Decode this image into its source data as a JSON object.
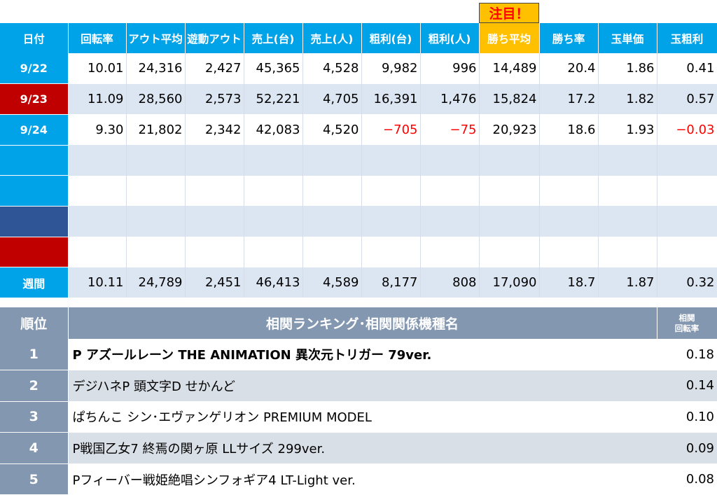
{
  "attention_label": "注目！",
  "stats": {
    "headers": [
      "日付",
      "回転率",
      "アウト平均",
      "遊動アウト",
      "売上(台)",
      "売上(人)",
      "粗利(台)",
      "粗利(人)",
      "勝ち平均",
      "勝ち率",
      "玉単価",
      "玉粗利"
    ],
    "rows": [
      {
        "date": "9/22",
        "values": [
          "10.01",
          "24,316",
          "2,427",
          "45,365",
          "4,528",
          "9,982",
          "996",
          "14,489",
          "20.4",
          "1.86",
          "0.41"
        ]
      },
      {
        "date": "9/23",
        "values": [
          "11.09",
          "28,560",
          "2,573",
          "52,221",
          "4,705",
          "16,391",
          "1,476",
          "15,824",
          "17.2",
          "1.82",
          "0.57"
        ]
      },
      {
        "date": "9/24",
        "values": [
          "9.30",
          "21,802",
          "2,342",
          "42,083",
          "4,520",
          "−705",
          "−75",
          "20,923",
          "18.6",
          "1.93",
          "−0.03"
        ]
      },
      {
        "date": "",
        "values": [
          "",
          "",
          "",
          "",
          "",
          "",
          "",
          "",
          "",
          "",
          ""
        ]
      },
      {
        "date": "",
        "values": [
          "",
          "",
          "",
          "",
          "",
          "",
          "",
          "",
          "",
          "",
          ""
        ]
      },
      {
        "date": "",
        "values": [
          "",
          "",
          "",
          "",
          "",
          "",
          "",
          "",
          "",
          "",
          ""
        ]
      },
      {
        "date": "",
        "values": [
          "",
          "",
          "",
          "",
          "",
          "",
          "",
          "",
          "",
          "",
          ""
        ]
      }
    ],
    "weekly": {
      "label": "週間",
      "values": [
        "10.11",
        "24,789",
        "2,451",
        "46,413",
        "4,589",
        "8,177",
        "808",
        "17,090",
        "18.7",
        "1.87",
        "0.32"
      ]
    },
    "colors": {
      "header_bg": "#00a2e8",
      "highlight": "#ffc000",
      "sat": "#c00000",
      "navy": "#2f5597",
      "negative": "#ff0000"
    }
  },
  "ranking": {
    "rank_header": "順位",
    "name_header": "相関ランキング･相関関係機種名",
    "rate_header_1": "相関",
    "rate_header_2": "回転率",
    "rows": [
      {
        "rank": "1",
        "name": "P アズールレーン THE ANIMATION 異次元トリガー 79ver.",
        "rate": "0.18"
      },
      {
        "rank": "2",
        "name": "デジハネP 頭文字D せかんど",
        "rate": "0.14"
      },
      {
        "rank": "3",
        "name": "ぱちんこ シン･エヴァンゲリオン PREMIUM MODEL",
        "rate": "0.10"
      },
      {
        "rank": "4",
        "name": "P戦国乙女7 終焉の関ヶ原 LLサイズ 299ver.",
        "rate": "0.09"
      },
      {
        "rank": "5",
        "name": "Pフィーバー戦姫絶唱シンフォギア4 LT-Light ver.",
        "rate": "0.08"
      }
    ]
  }
}
